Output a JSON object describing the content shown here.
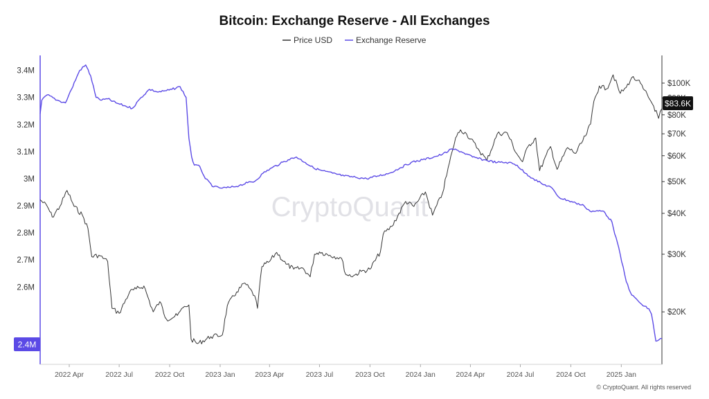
{
  "colors": {
    "price": "#333333",
    "reserve": "#5b4ae6",
    "price_badge_bg": "#111111",
    "reserve_badge_bg": "#5b4ae6"
  },
  "watermark": "CryptoQuant",
  "copyright": "© CryptoQuant. All rights reserved",
  "chart_data": {
    "type": "line",
    "title": "Bitcoin: Exchange Reserve - All Exchanges",
    "legend": {
      "placement": "top-center"
    },
    "grid": false,
    "x_range": [
      "2022-02-07",
      "2025-03-16"
    ],
    "x_ticks": [
      "2022 Apr",
      "2022 Jul",
      "2022 Oct",
      "2023 Jan",
      "2023 Apr",
      "2023 Jul",
      "2023 Oct",
      "2024 Jan",
      "2024 Apr",
      "2024 Jul",
      "2024 Oct",
      "2025 Jan"
    ],
    "y_left": {
      "range": [
        2350000,
        3440000
      ],
      "ticks": [
        "3.4M",
        "3.3M",
        "3.2M",
        "3.1M",
        "3M",
        "2.9M",
        "2.8M",
        "2.7M",
        "2.6M",
        "2.4M"
      ],
      "tick_values": [
        3400000,
        3300000,
        3200000,
        3100000,
        3000000,
        2900000,
        2800000,
        2700000,
        2600000,
        2400000
      ]
    },
    "y_right": {
      "scale": "log",
      "range": [
        14800,
        118000
      ],
      "ticks": [
        "$100K",
        "$90K",
        "$80K",
        "$70K",
        "$60K",
        "$50K",
        "$40K",
        "$30K",
        "$20K"
      ],
      "tick_values": [
        100000,
        90000,
        80000,
        70000,
        60000,
        50000,
        40000,
        30000,
        20000
      ]
    },
    "current_labels": {
      "price": "$83.6K",
      "reserve": "2.4M"
    },
    "series": [
      {
        "name": "Price USD",
        "axis": "right",
        "dates": [
          "2022-02-07",
          "2022-02-20",
          "2022-03-01",
          "2022-03-15",
          "2022-03-28",
          "2022-04-10",
          "2022-04-25",
          "2022-05-05",
          "2022-05-12",
          "2022-05-25",
          "2022-06-10",
          "2022-06-18",
          "2022-07-01",
          "2022-07-20",
          "2022-08-01",
          "2022-08-15",
          "2022-09-01",
          "2022-09-13",
          "2022-09-25",
          "2022-10-15",
          "2022-10-28",
          "2022-11-05",
          "2022-11-09",
          "2022-11-21",
          "2022-12-15",
          "2023-01-05",
          "2023-01-14",
          "2023-01-31",
          "2023-02-15",
          "2023-03-05",
          "2023-03-10",
          "2023-03-18",
          "2023-04-01",
          "2023-04-14",
          "2023-05-01",
          "2023-05-15",
          "2023-06-01",
          "2023-06-14",
          "2023-06-22",
          "2023-07-01",
          "2023-07-20",
          "2023-08-10",
          "2023-08-18",
          "2023-09-01",
          "2023-09-15",
          "2023-10-01",
          "2023-10-20",
          "2023-10-25",
          "2023-11-10",
          "2023-12-05",
          "2023-12-20",
          "2024-01-10",
          "2024-01-23",
          "2024-02-10",
          "2024-02-28",
          "2024-03-05",
          "2024-03-14",
          "2024-03-25",
          "2024-04-15",
          "2024-05-01",
          "2024-05-20",
          "2024-06-07",
          "2024-06-24",
          "2024-07-05",
          "2024-07-15",
          "2024-07-29",
          "2024-08-05",
          "2024-08-25",
          "2024-09-06",
          "2024-09-25",
          "2024-10-10",
          "2024-10-28",
          "2024-11-06",
          "2024-11-12",
          "2024-11-22",
          "2024-12-05",
          "2024-12-17",
          "2024-12-30",
          "2025-01-10",
          "2025-01-20",
          "2025-01-31",
          "2025-02-10",
          "2025-02-24",
          "2025-03-01",
          "2025-03-10",
          "2025-03-16"
        ],
        "values": [
          44000,
          42000,
          39000,
          42000,
          47000,
          42000,
          39500,
          36000,
          29500,
          29800,
          28500,
          20500,
          19800,
          23000,
          23500,
          24000,
          20000,
          21500,
          19000,
          19500,
          20800,
          21000,
          16500,
          16000,
          16800,
          17000,
          20900,
          23000,
          24500,
          22400,
          20500,
          27500,
          28500,
          30400,
          28000,
          27000,
          27200,
          25600,
          30000,
          30500,
          29800,
          29200,
          26000,
          25800,
          26600,
          27000,
          30500,
          34500,
          36500,
          43500,
          42000,
          46500,
          39500,
          46000,
          62000,
          68000,
          72000,
          70000,
          63000,
          58000,
          70000,
          70500,
          61000,
          57500,
          64000,
          68000,
          54000,
          64000,
          54500,
          63500,
          61000,
          69000,
          75000,
          88000,
          98000,
          96000,
          106000,
          93000,
          97000,
          104000,
          102000,
          96000,
          88000,
          85000,
          78000,
          83600
        ]
      },
      {
        "name": "Exchange Reserve",
        "axis": "left",
        "dates": [
          "2022-02-07",
          "2022-02-10",
          "2022-02-20",
          "2022-03-10",
          "2022-03-25",
          "2022-04-05",
          "2022-04-20",
          "2022-05-01",
          "2022-05-10",
          "2022-05-20",
          "2022-05-30",
          "2022-06-10",
          "2022-06-25",
          "2022-07-10",
          "2022-07-25",
          "2022-08-10",
          "2022-08-25",
          "2022-09-10",
          "2022-09-25",
          "2022-10-05",
          "2022-10-20",
          "2022-10-31",
          "2022-11-05",
          "2022-11-10",
          "2022-11-15",
          "2022-11-25",
          "2022-12-05",
          "2022-12-20",
          "2023-01-05",
          "2023-01-20",
          "2023-02-05",
          "2023-02-20",
          "2023-03-05",
          "2023-03-20",
          "2023-04-05",
          "2023-04-20",
          "2023-05-05",
          "2023-05-20",
          "2023-06-05",
          "2023-06-20",
          "2023-07-05",
          "2023-07-25",
          "2023-08-15",
          "2023-09-05",
          "2023-09-25",
          "2023-10-15",
          "2023-11-05",
          "2023-11-25",
          "2023-12-15",
          "2024-01-05",
          "2024-01-25",
          "2024-02-10",
          "2024-02-28",
          "2024-03-15",
          "2024-04-05",
          "2024-04-25",
          "2024-05-20",
          "2024-06-10",
          "2024-06-25",
          "2024-07-10",
          "2024-07-25",
          "2024-08-10",
          "2024-08-25",
          "2024-09-10",
          "2024-09-25",
          "2024-10-10",
          "2024-10-25",
          "2024-11-05",
          "2024-11-15",
          "2024-11-30",
          "2024-12-15",
          "2024-12-30",
          "2025-01-10",
          "2025-01-20",
          "2025-01-31",
          "2025-02-10",
          "2025-02-20",
          "2025-02-25",
          "2025-03-05",
          "2025-03-16"
        ],
        "values": [
          3240000,
          3290000,
          3310000,
          3290000,
          3280000,
          3330000,
          3400000,
          3420000,
          3380000,
          3300000,
          3290000,
          3295000,
          3280000,
          3270000,
          3260000,
          3300000,
          3330000,
          3320000,
          3325000,
          3330000,
          3340000,
          3300000,
          3150000,
          3080000,
          3050000,
          3045000,
          3000000,
          2970000,
          2965000,
          2968000,
          2975000,
          2985000,
          2990000,
          3020000,
          3040000,
          3055000,
          3070000,
          3080000,
          3060000,
          3040000,
          3030000,
          3020000,
          3010000,
          3005000,
          3000000,
          3010000,
          3020000,
          3040000,
          3060000,
          3070000,
          3080000,
          3090000,
          3110000,
          3100000,
          3080000,
          3070000,
          3060000,
          3060000,
          3050000,
          3020000,
          3000000,
          2980000,
          2970000,
          2930000,
          2920000,
          2910000,
          2900000,
          2880000,
          2880000,
          2880000,
          2840000,
          2720000,
          2620000,
          2570000,
          2550000,
          2530000,
          2520000,
          2500000,
          2400000,
          2410000
        ]
      }
    ]
  }
}
